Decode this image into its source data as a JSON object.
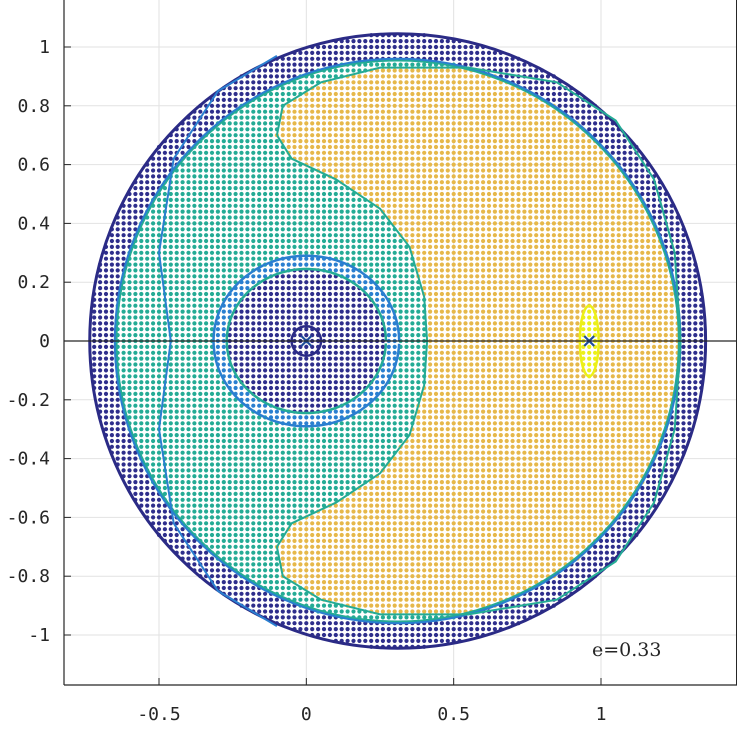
{
  "chart_data": {
    "type": "scatter",
    "title": "",
    "xlabel": "",
    "ylabel": "",
    "xlim": [
      -0.82,
      1.48
    ],
    "ylim": [
      -1.17,
      1.17
    ],
    "x_ticks": [
      -0.5,
      0,
      0.5,
      1
    ],
    "x_tick_labels": [
      "-0.5",
      "0",
      "0.5",
      "1"
    ],
    "y_ticks": [
      -1,
      -0.8,
      -0.6,
      -0.4,
      -0.2,
      0,
      0.2,
      0.4,
      0.6,
      0.8,
      1
    ],
    "y_tick_labels": [
      "-1",
      "-0.8",
      "-0.6",
      "-0.4",
      "-0.2",
      "0",
      "0.2",
      "0.4",
      "0.6",
      "0.8",
      "1"
    ],
    "grid": true,
    "annotation": "e=0.33",
    "domain": {
      "center": [
        0.31,
        0
      ],
      "radius": 1.045
    },
    "grid_points": {
      "spacing": 0.02
    },
    "markers": [
      {
        "symbol": "x",
        "x": 0,
        "y": 0
      },
      {
        "symbol": "x",
        "x": 0.96,
        "y": 0
      }
    ],
    "colors": {
      "dark_region": "#2e2e8c",
      "teal_region": "#24ab95",
      "blue_contour": "#2a7fd0",
      "gold_region": "#e6b84a",
      "yellow_region": "#ecf018",
      "outer_circle": "#2b2b86",
      "axis_line": "#262626",
      "grid_line": "#e2e2e2"
    }
  }
}
